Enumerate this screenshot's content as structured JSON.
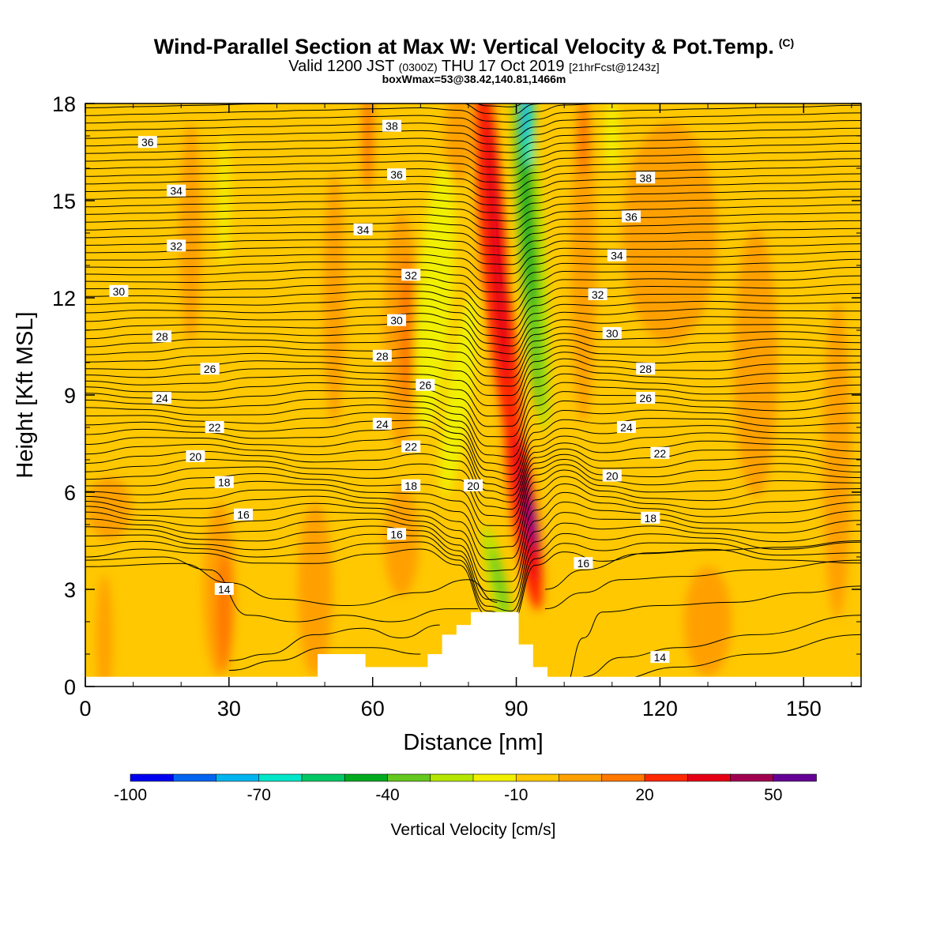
{
  "title": "Wind-Parallel Section at Max W: Vertical Velocity & Pot.Temp.",
  "title_mark": "(C)",
  "subtitle_main": "Valid 1200 JST",
  "subtitle_utc": "(0300Z)",
  "subtitle_date": "THU 17 Oct 2019",
  "subtitle_fcst": "[21hrFcst@1243z]",
  "subtitle2": "boxWmax=53@38.42,140.81,1466m",
  "chart_data": {
    "type": "heatmap",
    "xlabel": "Distance [nm]",
    "ylabel": "Height [Kft MSL]",
    "xlim": [
      0,
      162
    ],
    "ylim": [
      0,
      18
    ],
    "x_ticks": [
      0,
      30,
      60,
      90,
      120,
      150
    ],
    "y_ticks": [
      0,
      3,
      6,
      9,
      12,
      15,
      18
    ],
    "x_tick_labels": [
      "0",
      "30",
      "60",
      "90",
      "120",
      "150"
    ],
    "y_tick_labels": [
      "0",
      "3",
      "6",
      "9",
      "12",
      "15",
      "18"
    ],
    "colorbar": {
      "title": "Vertical Velocity [cm/s]",
      "levels": [
        -100,
        -90,
        -80,
        -70,
        -60,
        -50,
        -40,
        -30,
        -20,
        -10,
        0,
        10,
        20,
        30,
        40,
        50,
        60
      ],
      "tick_values": [
        -100,
        -70,
        -40,
        -10,
        20,
        50
      ],
      "tick_labels": [
        "-100",
        "-70",
        "-40",
        "-10",
        "20",
        "50"
      ],
      "colors": [
        "#0000f0",
        "#0064f0",
        "#00b4f0",
        "#00e6c8",
        "#00c864",
        "#00aa1e",
        "#64c81e",
        "#b4e600",
        "#f0f000",
        "#ffc800",
        "#ffa000",
        "#ff7800",
        "#ff2800",
        "#e60014",
        "#a00050",
        "#640096"
      ]
    },
    "terrain": [
      {
        "x": 0,
        "h": 0
      },
      {
        "x": 45.5,
        "h": 0
      },
      {
        "x": 45.5,
        "h": 0.3
      },
      {
        "x": 48.5,
        "h": 0.3
      },
      {
        "x": 48.5,
        "h": 1.0
      },
      {
        "x": 58.5,
        "h": 1.0
      },
      {
        "x": 58.5,
        "h": 0.6
      },
      {
        "x": 71.5,
        "h": 0.6
      },
      {
        "x": 71.5,
        "h": 1.0
      },
      {
        "x": 74.5,
        "h": 1.0
      },
      {
        "x": 74.5,
        "h": 1.6
      },
      {
        "x": 77.5,
        "h": 1.6
      },
      {
        "x": 77.5,
        "h": 1.9
      },
      {
        "x": 80.5,
        "h": 1.9
      },
      {
        "x": 80.5,
        "h": 2.3
      },
      {
        "x": 90.5,
        "h": 2.3
      },
      {
        "x": 90.5,
        "h": 1.3
      },
      {
        "x": 93.5,
        "h": 1.3
      },
      {
        "x": 93.5,
        "h": 0.6
      },
      {
        "x": 96.5,
        "h": 0.6
      },
      {
        "x": 96.5,
        "h": 0
      },
      {
        "x": 162,
        "h": 0
      }
    ],
    "theta_contour_labels": [
      {
        "label": "38",
        "x": 64,
        "y": 17.3
      },
      {
        "label": "36",
        "x": 13,
        "y": 16.8
      },
      {
        "label": "36",
        "x": 65,
        "y": 15.8
      },
      {
        "label": "38",
        "x": 117,
        "y": 15.7
      },
      {
        "label": "34",
        "x": 19,
        "y": 15.3
      },
      {
        "label": "36",
        "x": 114,
        "y": 14.5
      },
      {
        "label": "34",
        "x": 58,
        "y": 14.1
      },
      {
        "label": "32",
        "x": 19,
        "y": 13.6
      },
      {
        "label": "34",
        "x": 111,
        "y": 13.3
      },
      {
        "label": "32",
        "x": 68,
        "y": 12.7
      },
      {
        "label": "30",
        "x": 7,
        "y": 12.2
      },
      {
        "label": "32",
        "x": 107,
        "y": 12.1
      },
      {
        "label": "30",
        "x": 65,
        "y": 11.3
      },
      {
        "label": "30",
        "x": 110,
        "y": 10.9
      },
      {
        "label": "28",
        "x": 16,
        "y": 10.8
      },
      {
        "label": "28",
        "x": 62,
        "y": 10.2
      },
      {
        "label": "26",
        "x": 26,
        "y": 9.8
      },
      {
        "label": "28",
        "x": 117,
        "y": 9.8
      },
      {
        "label": "26",
        "x": 71,
        "y": 9.3
      },
      {
        "label": "24",
        "x": 16,
        "y": 8.9
      },
      {
        "label": "26",
        "x": 117,
        "y": 8.9
      },
      {
        "label": "24",
        "x": 62,
        "y": 8.1
      },
      {
        "label": "22",
        "x": 27,
        "y": 8.0
      },
      {
        "label": "24",
        "x": 113,
        "y": 8.0
      },
      {
        "label": "22",
        "x": 68,
        "y": 7.4
      },
      {
        "label": "22",
        "x": 120,
        "y": 7.2
      },
      {
        "label": "20",
        "x": 23,
        "y": 7.1
      },
      {
        "label": "20",
        "x": 110,
        "y": 6.5
      },
      {
        "label": "18",
        "x": 29,
        "y": 6.3
      },
      {
        "label": "18",
        "x": 68,
        "y": 6.2
      },
      {
        "label": "20",
        "x": 81,
        "y": 6.2
      },
      {
        "label": "16",
        "x": 33,
        "y": 5.3
      },
      {
        "label": "18",
        "x": 118,
        "y": 5.2
      },
      {
        "label": "16",
        "x": 65,
        "y": 4.7
      },
      {
        "label": "16",
        "x": 104,
        "y": 3.8
      },
      {
        "label": "14",
        "x": 29,
        "y": 3.0
      },
      {
        "label": "14",
        "x": 120,
        "y": 0.9
      }
    ]
  }
}
